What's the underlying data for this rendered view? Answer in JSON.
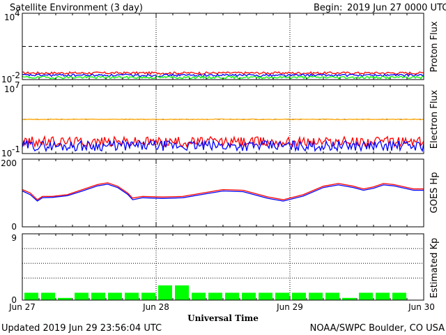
{
  "header": {
    "title": "Satellite Environment (3 day)",
    "begin_label": "Begin:",
    "begin_value": "2019 Jun 27 0000 UTC"
  },
  "footer": {
    "updated": "Updated 2019 Jun 29 23:56:04 UTC",
    "credit": "NOAA/SWPC Boulder, CO USA"
  },
  "x_axis": {
    "title": "Universal Time",
    "tick_labels": [
      "Jun 27",
      "Jun 28",
      "Jun 29",
      "Jun 30"
    ]
  },
  "colors": {
    "red": "#ff0000",
    "blue": "#0000ff",
    "green": "#00ff00",
    "orange": "#ffa500",
    "kp_bar": "#00ff00"
  },
  "chart_data": [
    {
      "type": "line",
      "panel": "proton",
      "ylabel": "Proton Flux",
      "yscale": "log",
      "ylim": [
        0.01,
        10000
      ],
      "ytick_labels": {
        "top": {
          "base": "10",
          "exp": "4"
        },
        "bottom": {
          "base": "10",
          "exp": "-2"
        }
      },
      "threshold": 10,
      "x_days": [
        0,
        3
      ],
      "series": [
        {
          "color": "red",
          "level": 0.04
        },
        {
          "color": "blue",
          "level": 0.025
        },
        {
          "color": "green",
          "level": 0.016
        }
      ]
    },
    {
      "type": "line",
      "panel": "electron",
      "ylabel": "Electron Flux",
      "yscale": "log",
      "ylim": [
        0.1,
        10000000
      ],
      "ytick_labels": {
        "top": {
          "base": "10",
          "exp": "7"
        },
        "bottom": {
          "base": "10",
          "exp": "-1"
        }
      },
      "threshold": 1000,
      "x_days": [
        0,
        3
      ],
      "series": [
        {
          "color": "orange",
          "level": 1000
        },
        {
          "color": "red",
          "level": 2.5
        },
        {
          "color": "blue",
          "level": 0.8
        }
      ]
    },
    {
      "type": "line",
      "panel": "goes_hp",
      "ylabel": "GOES Hp",
      "ylim": [
        0,
        200
      ],
      "ytick_labels": [
        "200",
        "0"
      ],
      "x_days": [
        0,
        3
      ],
      "series": [
        {
          "color": "red",
          "points": [
            [
              0,
              110
            ],
            [
              0.08,
              100
            ],
            [
              0.15,
              80
            ],
            [
              0.2,
              90
            ],
            [
              0.3,
              90
            ],
            [
              0.45,
              95
            ],
            [
              0.6,
              110
            ],
            [
              0.75,
              125
            ],
            [
              0.85,
              130
            ],
            [
              0.95,
              120
            ],
            [
              1.05,
              100
            ],
            [
              1.1,
              85
            ],
            [
              1.2,
              90
            ],
            [
              1.4,
              88
            ],
            [
              1.6,
              90
            ],
            [
              1.8,
              100
            ],
            [
              2.0,
              110
            ],
            [
              2.2,
              108
            ],
            [
              2.45,
              88
            ],
            [
              2.6,
              80
            ],
            [
              2.8,
              95
            ],
            [
              3.0,
              120
            ],
            [
              3.15,
              128
            ],
            [
              3.3,
              120
            ],
            [
              3.4,
              112
            ],
            [
              3.5,
              118
            ],
            [
              3.6,
              128
            ],
            [
              3.7,
              125
            ],
            [
              3.9,
              112
            ],
            [
              4.0,
              112
            ]
          ]
        },
        {
          "color": "blue",
          "points": [
            [
              0,
              106
            ],
            [
              0.08,
              95
            ],
            [
              0.15,
              76
            ],
            [
              0.2,
              86
            ],
            [
              0.3,
              87
            ],
            [
              0.45,
              92
            ],
            [
              0.6,
              106
            ],
            [
              0.75,
              121
            ],
            [
              0.85,
              126
            ],
            [
              0.95,
              116
            ],
            [
              1.05,
              96
            ],
            [
              1.1,
              80
            ],
            [
              1.2,
              86
            ],
            [
              1.4,
              84
            ],
            [
              1.6,
              86
            ],
            [
              1.8,
              96
            ],
            [
              2.0,
              106
            ],
            [
              2.2,
              104
            ],
            [
              2.45,
              84
            ],
            [
              2.6,
              76
            ],
            [
              2.8,
              91
            ],
            [
              3.0,
              116
            ],
            [
              3.15,
              124
            ],
            [
              3.3,
              116
            ],
            [
              3.4,
              108
            ],
            [
              3.5,
              114
            ],
            [
              3.6,
              124
            ],
            [
              3.7,
              121
            ],
            [
              3.9,
              108
            ],
            [
              4.0,
              108
            ]
          ]
        }
      ]
    },
    {
      "type": "bar",
      "panel": "kp",
      "ylabel": "Estimated Kp",
      "ylim": [
        0,
        9
      ],
      "ytick_labels": [
        "9",
        "0"
      ],
      "gridlines": [
        3,
        5,
        7
      ],
      "bar_width_days": 0.125,
      "values": [
        1,
        1,
        0.3,
        1,
        1,
        1,
        1,
        1,
        2,
        2,
        1,
        1,
        1,
        1,
        1,
        1,
        1,
        1,
        1,
        0.3,
        1,
        1,
        1,
        0
      ]
    }
  ]
}
